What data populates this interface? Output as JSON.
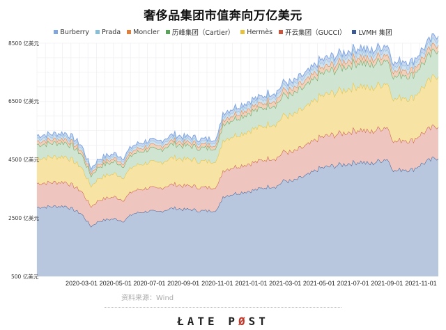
{
  "title": "奢侈品集团市值奔向万亿美元",
  "legend": [
    {
      "label": "Burberry",
      "color": "#7fa6e0"
    },
    {
      "label": "Prada",
      "color": "#86bfd9"
    },
    {
      "label": "Moncler",
      "color": "#e07f3c"
    },
    {
      "label": "历峰集团（Cartier）",
      "color": "#5aa35a"
    },
    {
      "label": "Hermès",
      "color": "#e8c13a"
    },
    {
      "label": "开云集团（GUCCI）",
      "color": "#c8553d"
    },
    {
      "label": "LVMH 集团",
      "color": "#3a5a95"
    }
  ],
  "y_axis": {
    "ticks": [
      "8500 亿美元",
      "6500 亿美元",
      "4500 亿美元",
      "2500 亿美元",
      "500 亿美元"
    ]
  },
  "x_axis": {
    "ticks": [
      "2020-03-01",
      "2020-05-01",
      "2020-07-01",
      "2020-09-01",
      "2020-11-01",
      "2021-01-01",
      "2021-03-01",
      "2021-05-01",
      "2021-07-01",
      "2021-09-01",
      "2021-11-01"
    ]
  },
  "source": "资料来源：Wind",
  "logo": {
    "part1": "Ł",
    "part2": "ATE P",
    "part3": "Ø",
    "part4": "ST"
  },
  "chart_data": {
    "type": "area",
    "stacked": true,
    "title": "奢侈品集团市值奔向万亿美元",
    "xlabel": "",
    "ylabel": "亿美元",
    "ylim": [
      500,
      8500
    ],
    "yticks": [
      500,
      2500,
      4500,
      6500,
      8500
    ],
    "grid": true,
    "legend_position": "top",
    "x": [
      "2020-01-20",
      "2020-02-01",
      "2020-02-15",
      "2020-03-01",
      "2020-03-18",
      "2020-04-01",
      "2020-04-15",
      "2020-05-01",
      "2020-05-15",
      "2020-06-01",
      "2020-06-15",
      "2020-07-01",
      "2020-07-15",
      "2020-08-01",
      "2020-08-15",
      "2020-09-01",
      "2020-09-15",
      "2020-10-01",
      "2020-10-15",
      "2020-11-01",
      "2020-11-10",
      "2020-12-01",
      "2020-12-15",
      "2021-01-01",
      "2021-01-15",
      "2021-02-01",
      "2021-02-15",
      "2021-03-01",
      "2021-03-15",
      "2021-04-01",
      "2021-04-15",
      "2021-05-01",
      "2021-05-15",
      "2021-06-01",
      "2021-06-15",
      "2021-07-01",
      "2021-07-15",
      "2021-08-01",
      "2021-08-15",
      "2021-09-01",
      "2021-09-15",
      "2021-10-01",
      "2021-10-15",
      "2021-11-01",
      "2021-11-15"
    ],
    "series": [
      {
        "name": "LVMH 集团",
        "values": [
          2380,
          2420,
          2300,
          2150,
          1720,
          1900,
          1950,
          1980,
          1900,
          2150,
          2200,
          2250,
          2200,
          2300,
          2350,
          2300,
          2300,
          2250,
          2250,
          2300,
          2750,
          2850,
          2900,
          2950,
          3000,
          3100,
          3100,
          3300,
          3250,
          3400,
          3500,
          3700,
          3750,
          3800,
          3850,
          3900,
          3950,
          3850,
          3950,
          4050,
          3600,
          3700,
          3650,
          3850,
          4100
        ]
      },
      {
        "name": "开云集团（GUCCI）",
        "values": [
          820,
          830,
          810,
          780,
          680,
          720,
          740,
          750,
          730,
          780,
          790,
          800,
          790,
          810,
          820,
          810,
          810,
          800,
          800,
          810,
          900,
          920,
          930,
          950,
          950,
          970,
          970,
          1000,
          990,
          1010,
          1030,
          1050,
          1060,
          1070,
          1080,
          1100,
          1110,
          1090,
          1100,
          1110,
          1000,
          1020,
          1000,
          1040,
          1100
        ]
      },
      {
        "name": "Hermès",
        "values": [
          860,
          880,
          860,
          820,
          700,
          760,
          780,
          800,
          780,
          840,
          860,
          880,
          870,
          900,
          920,
          910,
          910,
          900,
          900,
          910,
          1050,
          1080,
          1100,
          1150,
          1150,
          1180,
          1190,
          1250,
          1250,
          1300,
          1320,
          1400,
          1420,
          1450,
          1480,
          1500,
          1520,
          1480,
          1500,
          1520,
          1450,
          1480,
          1450,
          1550,
          1750
        ]
      },
      {
        "name": "历峰集团（Cartier）",
        "values": [
          470,
          480,
          470,
          450,
          360,
          390,
          400,
          410,
          400,
          430,
          440,
          450,
          440,
          460,
          470,
          460,
          460,
          450,
          450,
          460,
          560,
          580,
          600,
          620,
          620,
          650,
          660,
          700,
          700,
          720,
          730,
          760,
          770,
          780,
          790,
          800,
          810,
          800,
          800,
          810,
          760,
          780,
          770,
          810,
          900
        ]
      },
      {
        "name": "Moncler",
        "values": [
          120,
          122,
          120,
          115,
          95,
          100,
          102,
          104,
          102,
          110,
          112,
          114,
          112,
          116,
          118,
          117,
          117,
          116,
          116,
          118,
          145,
          150,
          152,
          156,
          158,
          162,
          164,
          170,
          170,
          172,
          175,
          180,
          182,
          185,
          188,
          190,
          192,
          188,
          190,
          192,
          180,
          185,
          182,
          190,
          200
        ]
      },
      {
        "name": "Prada",
        "values": [
          100,
          102,
          100,
          96,
          80,
          84,
          86,
          88,
          86,
          92,
          94,
          96,
          94,
          98,
          100,
          99,
          99,
          98,
          98,
          100,
          122,
          126,
          128,
          132,
          134,
          138,
          140,
          146,
          146,
          148,
          150,
          156,
          158,
          160,
          162,
          164,
          166,
          162,
          164,
          166,
          156,
          160,
          158,
          164,
          174
        ]
      },
      {
        "name": "Burberry",
        "values": [
          90,
          92,
          90,
          86,
          70,
          74,
          76,
          78,
          76,
          82,
          84,
          86,
          84,
          88,
          90,
          89,
          89,
          88,
          88,
          90,
          100,
          102,
          104,
          106,
          108,
          110,
          112,
          116,
          116,
          118,
          120,
          124,
          126,
          128,
          130,
          132,
          134,
          130,
          132,
          134,
          126,
          128,
          126,
          132,
          140
        ]
      }
    ]
  }
}
